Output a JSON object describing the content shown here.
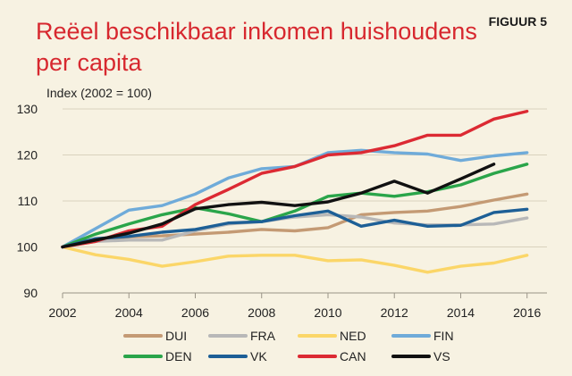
{
  "header": {
    "title_line1": "Reëel beschikbaar inkomen huishoudens",
    "title_line2": "per capita",
    "figure_label": "FIGUUR 5"
  },
  "chart_data": {
    "type": "line",
    "title": "Reëel beschikbaar inkomen huishoudens per capita",
    "ylabel": "Index (2002 = 100)",
    "xlabel": "",
    "x": [
      2002,
      2003,
      2004,
      2005,
      2006,
      2007,
      2008,
      2009,
      2010,
      2011,
      2012,
      2013,
      2014,
      2015,
      2016
    ],
    "xticks": [
      2002,
      2004,
      2006,
      2008,
      2010,
      2012,
      2014,
      2016
    ],
    "xlim": [
      2002,
      2016.6
    ],
    "ylim": [
      90,
      130
    ],
    "yticks": [
      90,
      100,
      110,
      120,
      130
    ],
    "grid": "horizontal",
    "legend": "bottom",
    "series": [
      {
        "name": "DUI",
        "color": "#c49a74",
        "values": [
          100,
          101.5,
          102.2,
          102.4,
          102.8,
          103.2,
          103.8,
          103.5,
          104.2,
          107.0,
          107.5,
          107.8,
          108.8,
          110.2,
          111.5
        ]
      },
      {
        "name": "FRA",
        "color": "#b8b8b8",
        "values": [
          100,
          101.2,
          101.5,
          101.5,
          103.5,
          105.0,
          105.5,
          106.5,
          107.0,
          106.5,
          105.2,
          104.8,
          104.8,
          105.0,
          106.3
        ]
      },
      {
        "name": "NED",
        "color": "#fbd668",
        "values": [
          100,
          98.3,
          97.3,
          95.8,
          96.8,
          98.0,
          98.2,
          98.2,
          97.0,
          97.2,
          96.0,
          94.5,
          95.8,
          96.5,
          98.2
        ]
      },
      {
        "name": "FIN",
        "color": "#6fabd9",
        "values": [
          100,
          104.0,
          108.0,
          109.0,
          111.5,
          115.0,
          117.0,
          117.5,
          120.5,
          121.0,
          120.5,
          120.2,
          118.8,
          119.8,
          120.5
        ]
      },
      {
        "name": "DEN",
        "color": "#2aa54a",
        "values": [
          100,
          102.8,
          105.0,
          107.0,
          108.5,
          107.2,
          105.5,
          107.8,
          111.0,
          111.7,
          111.0,
          112.0,
          113.5,
          116.0,
          118.0
        ]
      },
      {
        "name": "VK",
        "color": "#1d5f96",
        "values": [
          100,
          101.8,
          102.3,
          103.2,
          103.8,
          105.2,
          105.5,
          106.8,
          107.8,
          104.5,
          105.8,
          104.5,
          104.7,
          107.5,
          108.2
        ]
      },
      {
        "name": "CAN",
        "color": "#dc2a33",
        "values": [
          100,
          101.2,
          103.5,
          104.5,
          109.2,
          112.5,
          116.0,
          117.5,
          120.0,
          120.5,
          122.0,
          124.3,
          124.3,
          127.8,
          129.5
        ]
      },
      {
        "name": "VS",
        "color": "#111111",
        "values": [
          100,
          101.5,
          103.0,
          105.0,
          108.3,
          109.2,
          109.7,
          109.0,
          109.8,
          111.7,
          114.3,
          111.7,
          114.8,
          118.0,
          null
        ]
      }
    ]
  }
}
